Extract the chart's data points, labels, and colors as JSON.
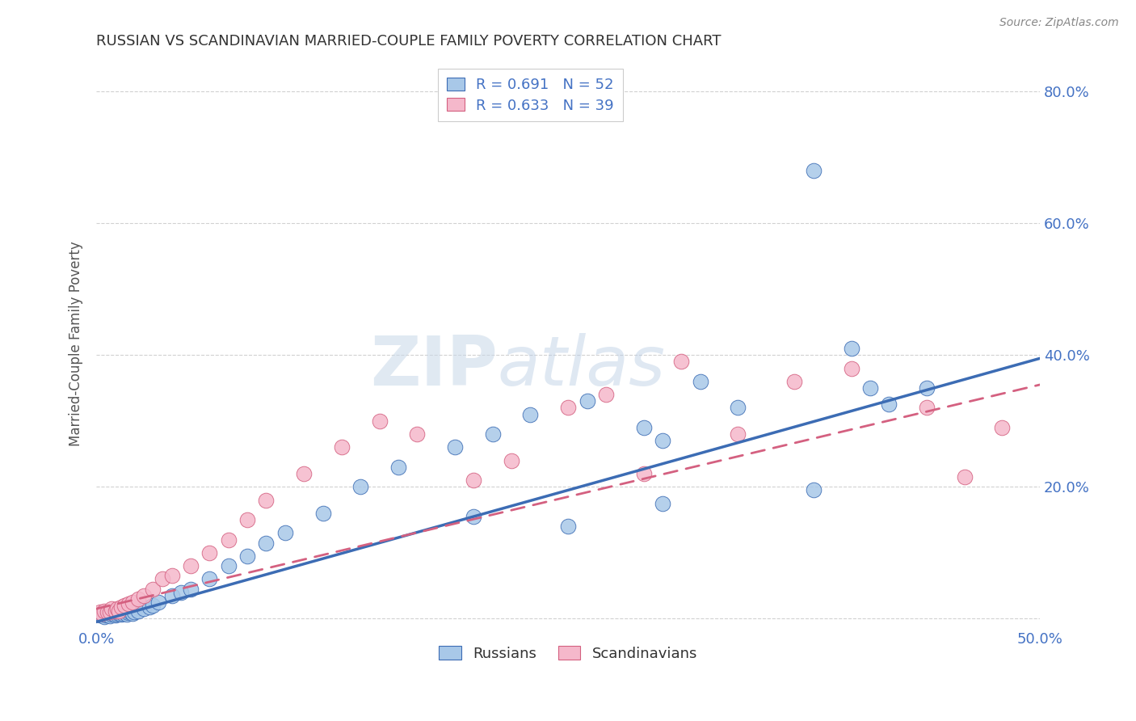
{
  "title": "RUSSIAN VS SCANDINAVIAN MARRIED-COUPLE FAMILY POVERTY CORRELATION CHART",
  "source": "Source: ZipAtlas.com",
  "ylabel": "Married-Couple Family Poverty",
  "xlim": [
    0.0,
    0.5
  ],
  "ylim": [
    -0.015,
    0.85
  ],
  "russian_R": 0.691,
  "russian_N": 52,
  "scandinavian_R": 0.633,
  "scandinavian_N": 39,
  "russian_color": "#a8c8e8",
  "scandinavian_color": "#f5b8cb",
  "russian_line_color": "#3c6cb4",
  "scandinavian_line_color": "#d46080",
  "watermark_ZIP": "ZIP",
  "watermark_atlas": "atlas",
  "background_color": "#ffffff",
  "grid_color": "#cccccc",
  "russians_x": [
    0.002,
    0.003,
    0.004,
    0.005,
    0.006,
    0.007,
    0.008,
    0.009,
    0.01,
    0.011,
    0.012,
    0.013,
    0.014,
    0.015,
    0.016,
    0.017,
    0.018,
    0.019,
    0.02,
    0.022,
    0.025,
    0.028,
    0.03,
    0.033,
    0.04,
    0.045,
    0.05,
    0.06,
    0.07,
    0.08,
    0.09,
    0.1,
    0.12,
    0.14,
    0.16,
    0.19,
    0.21,
    0.23,
    0.26,
    0.29,
    0.3,
    0.32,
    0.34,
    0.38,
    0.4,
    0.41,
    0.42,
    0.3,
    0.38,
    0.44,
    0.2,
    0.25
  ],
  "russians_y": [
    0.005,
    0.005,
    0.003,
    0.005,
    0.006,
    0.004,
    0.006,
    0.008,
    0.005,
    0.007,
    0.008,
    0.006,
    0.008,
    0.01,
    0.006,
    0.009,
    0.01,
    0.008,
    0.01,
    0.012,
    0.015,
    0.018,
    0.02,
    0.025,
    0.035,
    0.04,
    0.045,
    0.06,
    0.08,
    0.095,
    0.115,
    0.13,
    0.16,
    0.2,
    0.23,
    0.26,
    0.28,
    0.31,
    0.33,
    0.29,
    0.27,
    0.36,
    0.32,
    0.68,
    0.41,
    0.35,
    0.325,
    0.175,
    0.195,
    0.35,
    0.155,
    0.14
  ],
  "scandinavians_x": [
    0.002,
    0.003,
    0.004,
    0.006,
    0.007,
    0.008,
    0.01,
    0.011,
    0.012,
    0.013,
    0.015,
    0.017,
    0.019,
    0.022,
    0.025,
    0.03,
    0.035,
    0.04,
    0.05,
    0.06,
    0.07,
    0.08,
    0.09,
    0.11,
    0.13,
    0.15,
    0.17,
    0.2,
    0.22,
    0.25,
    0.27,
    0.29,
    0.31,
    0.34,
    0.37,
    0.4,
    0.44,
    0.46,
    0.48
  ],
  "scandinavians_y": [
    0.01,
    0.008,
    0.012,
    0.01,
    0.01,
    0.015,
    0.012,
    0.015,
    0.012,
    0.018,
    0.02,
    0.022,
    0.025,
    0.03,
    0.035,
    0.045,
    0.06,
    0.065,
    0.08,
    0.1,
    0.12,
    0.15,
    0.18,
    0.22,
    0.26,
    0.3,
    0.28,
    0.21,
    0.24,
    0.32,
    0.34,
    0.22,
    0.39,
    0.28,
    0.36,
    0.38,
    0.32,
    0.215,
    0.29
  ],
  "rus_line_x0": 0.0,
  "rus_line_y0": -0.005,
  "rus_line_x1": 0.5,
  "rus_line_y1": 0.395,
  "sca_line_x0": 0.0,
  "sca_line_y0": 0.015,
  "sca_line_x1": 0.5,
  "sca_line_y1": 0.355
}
